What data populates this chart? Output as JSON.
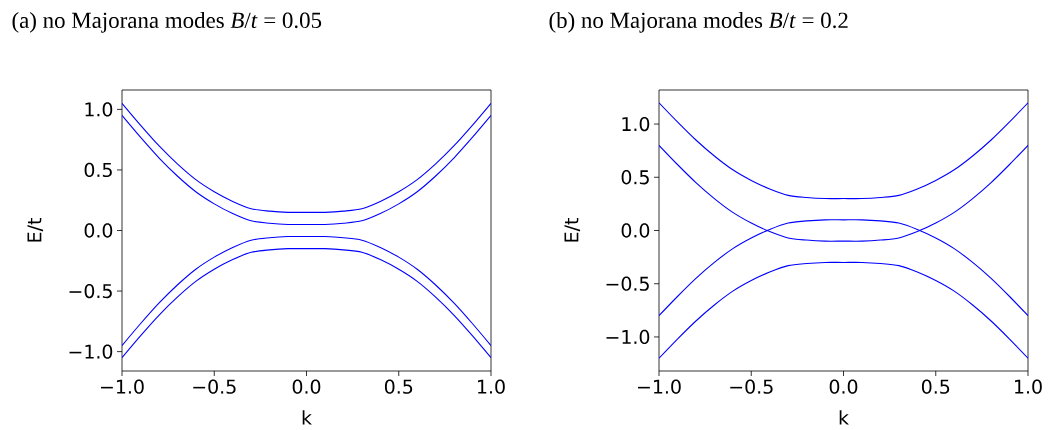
{
  "chart_data": [
    {
      "type": "line",
      "title": "(a) no Majorana modes *B*/*t* = 0.05",
      "xlabel": "k",
      "ylabel": "E/t",
      "marker": "none",
      "x": [
        -1.0,
        -0.9,
        -0.8,
        -0.7,
        -0.6,
        -0.5,
        -0.4,
        -0.3,
        -0.2,
        -0.1,
        0.0,
        0.1,
        0.2,
        0.3,
        0.4,
        0.5,
        0.6,
        0.7,
        0.8,
        0.9,
        1.0
      ],
      "xlim": [
        -1.0,
        1.0
      ],
      "ylim": [
        -1.16,
        1.16
      ],
      "xticks": [
        {
          "value": -1.0,
          "label": "−1.0"
        },
        {
          "value": -0.5,
          "label": "−0.5"
        },
        {
          "value": 0.0,
          "label": "0.0"
        },
        {
          "value": 0.5,
          "label": "0.5"
        },
        {
          "value": 1.0,
          "label": "1.0"
        }
      ],
      "yticks": [
        {
          "value": -1.0,
          "label": "−1.0"
        },
        {
          "value": -0.5,
          "label": "−0.5"
        },
        {
          "value": 0.0,
          "label": "0.0"
        },
        {
          "value": 0.5,
          "label": "0.5"
        },
        {
          "value": 1.0,
          "label": "1.0"
        }
      ],
      "series": [
        {
          "color": "#0000ff",
          "values": [
            1.05,
            0.87,
            0.7,
            0.55,
            0.42,
            0.32,
            0.24,
            0.18,
            0.16,
            0.15,
            0.15,
            0.15,
            0.16,
            0.18,
            0.24,
            0.32,
            0.42,
            0.55,
            0.7,
            0.87,
            1.05
          ]
        },
        {
          "color": "#0000ff",
          "values": [
            0.95,
            0.77,
            0.6,
            0.45,
            0.32,
            0.22,
            0.14,
            0.08,
            0.06,
            0.05,
            0.05,
            0.05,
            0.06,
            0.08,
            0.14,
            0.22,
            0.32,
            0.45,
            0.6,
            0.77,
            0.95
          ]
        },
        {
          "color": "#0000ff",
          "values": [
            -0.95,
            -0.77,
            -0.6,
            -0.45,
            -0.32,
            -0.22,
            -0.14,
            -0.08,
            -0.06,
            -0.05,
            -0.05,
            -0.05,
            -0.06,
            -0.08,
            -0.14,
            -0.22,
            -0.32,
            -0.45,
            -0.6,
            -0.77,
            -0.95
          ]
        },
        {
          "color": "#0000ff",
          "values": [
            -1.05,
            -0.87,
            -0.7,
            -0.55,
            -0.42,
            -0.32,
            -0.24,
            -0.18,
            -0.16,
            -0.15,
            -0.15,
            -0.15,
            -0.16,
            -0.18,
            -0.24,
            -0.32,
            -0.42,
            -0.55,
            -0.7,
            -0.87,
            -1.05
          ]
        }
      ]
    },
    {
      "type": "line",
      "title": "(b) no Majorana modes *B*/*t* = 0.2",
      "xlabel": "k",
      "ylabel": "E/t",
      "marker": "none",
      "x": [
        -1.0,
        -0.9,
        -0.8,
        -0.7,
        -0.6,
        -0.5,
        -0.4,
        -0.3,
        -0.2,
        -0.1,
        0.0,
        0.1,
        0.2,
        0.3,
        0.4,
        0.5,
        0.6,
        0.7,
        0.8,
        0.9,
        1.0
      ],
      "xlim": [
        -1.0,
        1.0
      ],
      "ylim": [
        -1.32,
        1.32
      ],
      "xticks": [
        {
          "value": -1.0,
          "label": "−1.0"
        },
        {
          "value": -0.5,
          "label": "−0.5"
        },
        {
          "value": 0.0,
          "label": "0.0"
        },
        {
          "value": 0.5,
          "label": "0.5"
        },
        {
          "value": 1.0,
          "label": "1.0"
        }
      ],
      "yticks": [
        {
          "value": -1.0,
          "label": "−1.0"
        },
        {
          "value": -0.5,
          "label": "−0.5"
        },
        {
          "value": 0.0,
          "label": "0.0"
        },
        {
          "value": 0.5,
          "label": "0.5"
        },
        {
          "value": 1.0,
          "label": "1.0"
        }
      ],
      "series": [
        {
          "color": "#0000ff",
          "values": [
            1.2,
            1.02,
            0.85,
            0.7,
            0.57,
            0.47,
            0.39,
            0.33,
            0.31,
            0.3,
            0.3,
            0.3,
            0.31,
            0.33,
            0.39,
            0.47,
            0.57,
            0.7,
            0.85,
            1.02,
            1.2
          ]
        },
        {
          "color": "#0000ff",
          "values": [
            0.8,
            0.62,
            0.45,
            0.3,
            0.17,
            0.07,
            -0.01,
            -0.07,
            -0.09,
            -0.1,
            -0.1,
            -0.1,
            -0.09,
            -0.07,
            -0.01,
            0.07,
            0.17,
            0.3,
            0.45,
            0.62,
            0.8
          ]
        },
        {
          "color": "#0000ff",
          "values": [
            -0.8,
            -0.62,
            -0.45,
            -0.3,
            -0.17,
            -0.07,
            0.01,
            0.07,
            0.09,
            0.1,
            0.1,
            0.1,
            0.09,
            0.07,
            0.01,
            -0.07,
            -0.17,
            -0.3,
            -0.45,
            -0.62,
            -0.8
          ]
        },
        {
          "color": "#0000ff",
          "values": [
            -1.2,
            -1.02,
            -0.85,
            -0.7,
            -0.57,
            -0.47,
            -0.39,
            -0.33,
            -0.31,
            -0.3,
            -0.3,
            -0.3,
            -0.31,
            -0.33,
            -0.39,
            -0.47,
            -0.57,
            -0.7,
            -0.85,
            -1.02,
            -1.2
          ]
        }
      ]
    }
  ]
}
